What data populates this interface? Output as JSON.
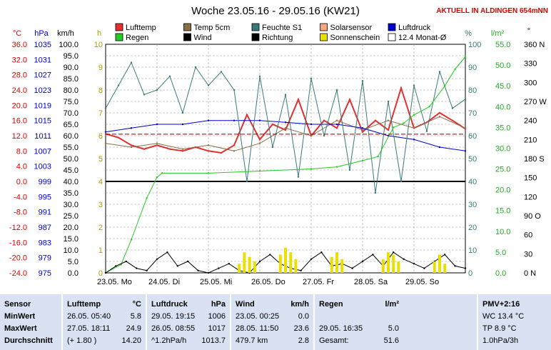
{
  "header": {
    "title": "Woche 23.05.16 - 29.05.16 (KW21)",
    "subtitle": "AKTUELL IN ALDINGEN 654mNN"
  },
  "axis_units": {
    "temp": "°C",
    "press": "hPa",
    "kmh": "km/h",
    "h": "h",
    "pct": "%",
    "lm2": "l/m²",
    "deg": "°"
  },
  "legend": [
    {
      "label": "Lufttemp",
      "color": "#e03030"
    },
    {
      "label": "Temp 5cm",
      "color": "#8b6f47"
    },
    {
      "label": "Feuchte S1",
      "color": "#3a7a7a"
    },
    {
      "label": "Solarsensor",
      "color": "#f4a882"
    },
    {
      "label": "Luftdruck",
      "color": "#0000d0"
    },
    {
      "label": "Regen",
      "color": "#22cc22"
    },
    {
      "label": "Wind",
      "color": "#000000"
    },
    {
      "label": "Richtung",
      "color": "#000000"
    },
    {
      "label": "Sonnenschein",
      "color": "#e8e000"
    },
    {
      "label": "12.4 Monat-Ø",
      "color": "#ffffff"
    }
  ],
  "chart_data": {
    "type": "line",
    "title": "Woche 23.05.16 - 29.05.16 (KW21)",
    "x_ticks": [
      "23.05. Mo",
      "24.05. Di",
      "25.05. Mi",
      "26.05. Do",
      "27.05. Fr",
      "28.05. Sa",
      "29.05. So"
    ],
    "axes": {
      "temp_c": [
        "36.0",
        "32.0",
        "28.0",
        "24.0",
        "20.0",
        "16.0",
        "12.0",
        "8.0",
        "4.0",
        "0.0",
        "-4.0",
        "-8.0",
        "-12.0",
        "-16.0",
        "-20.0",
        "-24.0"
      ],
      "press_hpa": [
        "1035",
        "1031",
        "1027",
        "1023",
        "1019",
        "1015",
        "1011",
        "1007",
        "1003",
        "999",
        "995",
        "991",
        "987",
        "983",
        "979",
        "975"
      ],
      "wind_kmh": [
        "100.0",
        "95.0",
        "90.0",
        "85.0",
        "80.0",
        "75.0",
        "70.0",
        "65.0",
        "60.0",
        "55.0",
        "50.0",
        "45.0",
        "40.0",
        "35.0",
        "30.0",
        "25.0",
        "20.0",
        "15.0",
        "10.0",
        "5.0",
        "0.0"
      ],
      "sun_h": [
        "10",
        "9",
        "8",
        "7",
        "6",
        "5",
        "4",
        "3",
        "2",
        "1",
        "0"
      ],
      "humidity_pct": [
        "100",
        "90",
        "80",
        "70",
        "60",
        "50",
        "40",
        "30",
        "20",
        "10",
        "0"
      ],
      "rain_lm2": [
        "55.0",
        "50.0",
        "45.0",
        "40.0",
        "35.0",
        "30.0",
        "25.0",
        "20.0",
        "15.0",
        "10.0",
        "5.0",
        "0.0"
      ],
      "direction_deg": [
        "360 N",
        "330",
        "300",
        "270 W",
        "240",
        "210",
        "180 S",
        "150",
        "120",
        "90 O",
        "60",
        "30",
        "0 N"
      ]
    },
    "ylim": {
      "temp_c": [
        -24,
        36
      ],
      "press_hpa": [
        975,
        1035
      ],
      "wind_kmh": [
        0,
        100
      ],
      "sun_h": [
        0,
        10
      ],
      "humidity_pct": [
        0,
        100
      ],
      "rain_lm2": [
        0,
        55
      ],
      "direction_deg": [
        0,
        360
      ]
    },
    "xlim_days": [
      0,
      7
    ],
    "series": [
      {
        "name": "Lufttemp",
        "axis": "temp_c",
        "x": [
          0,
          0.25,
          0.5,
          0.75,
          1,
          1.25,
          1.5,
          1.75,
          2,
          2.25,
          2.5,
          2.75,
          3,
          3.25,
          3.5,
          3.75,
          4,
          4.25,
          4.5,
          4.75,
          5,
          5.25,
          5.5,
          5.75,
          6,
          6.25,
          6.5,
          6.75,
          7
        ],
        "y": [
          12.5,
          11.5,
          9.5,
          8.5,
          9.5,
          8.5,
          8.0,
          9.0,
          8.0,
          7.5,
          9.5,
          17.5,
          11.0,
          15.0,
          13.5,
          21.5,
          12.0,
          16.0,
          14.0,
          21.5,
          13.0,
          16.0,
          13.5,
          24.5,
          14.0,
          15.5,
          18.0,
          16.0,
          13.8
        ]
      },
      {
        "name": "Temp 5cm",
        "axis": "temp_c",
        "x": [
          0,
          0.5,
          1,
          1.5,
          2,
          2.5,
          3,
          3.5,
          4,
          4.5,
          5,
          5.5,
          6,
          6.5,
          7
        ],
        "y": [
          10,
          9,
          10,
          8.5,
          9.5,
          8,
          10,
          14,
          12,
          16,
          13.5,
          16,
          14,
          17,
          14
        ]
      },
      {
        "name": "Luftdruck",
        "axis": "press_hpa",
        "x": [
          0,
          0.5,
          1,
          1.5,
          2,
          2.5,
          3,
          3.5,
          4,
          4.5,
          5,
          5.5,
          6,
          6.5,
          7
        ],
        "y": [
          1012,
          1013,
          1014,
          1014,
          1015,
          1015,
          1015,
          1014.5,
          1014,
          1014,
          1013,
          1011,
          1010,
          1008,
          1007
        ]
      },
      {
        "name": "Feuchte S1",
        "axis": "humidity_pct",
        "x": [
          0,
          0.25,
          0.5,
          0.75,
          1,
          1.25,
          1.5,
          1.75,
          2,
          2.25,
          2.5,
          2.75,
          3,
          3.25,
          3.5,
          3.75,
          4,
          4.25,
          4.5,
          4.75,
          5,
          5.25,
          5.5,
          5.75,
          6,
          6.25,
          6.5,
          6.75,
          7
        ],
        "y": [
          72,
          82,
          92,
          78,
          80,
          86,
          70,
          90,
          82,
          88,
          80,
          40,
          86,
          55,
          78,
          42,
          85,
          60,
          80,
          45,
          84,
          35,
          75,
          40,
          82,
          62,
          88,
          72,
          76
        ]
      },
      {
        "name": "Regen",
        "axis": "rain_lm2",
        "x": [
          0,
          0.3,
          0.5,
          0.8,
          1.0,
          1.1,
          2.0,
          3.0,
          4.0,
          4.5,
          5.0,
          5.3,
          5.6,
          5.8,
          6.0,
          6.3,
          6.6,
          6.8,
          7
        ],
        "y": [
          0,
          2,
          8,
          18,
          23,
          24,
          24,
          24.5,
          25,
          25.5,
          27,
          28,
          35,
          36,
          38,
          40,
          45,
          49,
          52
        ]
      },
      {
        "name": "Wind",
        "axis": "wind_kmh",
        "x": [
          0,
          0.2,
          0.4,
          0.6,
          0.8,
          1.0,
          1.2,
          1.4,
          1.6,
          1.8,
          2.0,
          2.2,
          2.4,
          2.6,
          2.8,
          3.0,
          3.2,
          3.4,
          3.6,
          3.8,
          4.0,
          4.2,
          4.4,
          4.6,
          4.8,
          5.0,
          5.2,
          5.4,
          5.6,
          5.8,
          6.0,
          6.2,
          6.4,
          6.6,
          6.8,
          7.0
        ],
        "y": [
          0,
          3,
          5,
          2,
          1,
          6,
          9,
          3,
          5,
          1,
          0,
          2,
          4,
          1,
          0,
          5,
          8,
          4,
          2,
          1,
          6,
          9,
          3,
          4,
          2,
          5,
          8,
          3,
          9,
          6,
          4,
          2,
          5,
          8,
          3,
          2
        ]
      },
      {
        "name": "Sonnenschein",
        "axis": "sun_h",
        "x": [
          2.6,
          2.7,
          2.8,
          2.9,
          3.4,
          3.5,
          3.6,
          3.7,
          4.4,
          4.5,
          4.6,
          5.4,
          5.5,
          5.6,
          5.7,
          6.4,
          6.5,
          6.6
        ],
        "y": [
          0.4,
          0.9,
          0.7,
          0.5,
          0.8,
          1.1,
          0.9,
          0.6,
          0.7,
          0.9,
          0.6,
          0.6,
          0.9,
          0.8,
          0.5,
          0.5,
          0.8,
          0.4
        ]
      },
      {
        "name": "12.4 Monat-Ø",
        "axis": "temp_c",
        "x": [
          0,
          7
        ],
        "y": [
          12.4,
          12.4
        ]
      }
    ]
  },
  "table": {
    "sensor": {
      "head": "Sensor",
      "rows": [
        "MinWert",
        "MaxWert",
        "Durchschnitt"
      ]
    },
    "temp": {
      "head": "Lufttemp",
      "unit": "°C",
      "rows": [
        [
          "26.05.  05:40",
          "5.8"
        ],
        [
          "27.05.  18:11",
          "24.9"
        ],
        [
          "(+ 1.80 )",
          "14.20"
        ]
      ]
    },
    "press": {
      "head": "Luftdruck",
      "unit": "hPa",
      "rows": [
        [
          "29.05.  19:15",
          "1006"
        ],
        [
          "26.05.  08:55",
          "1017"
        ],
        [
          "^1.2hPa/h",
          "1013.7"
        ]
      ]
    },
    "wind": {
      "head": "Wind",
      "unit": "km/h",
      "rows": [
        [
          "23.05.  00:25",
          "0.0"
        ],
        [
          "28.05.  11:50",
          "23.6"
        ],
        [
          "479.7 km",
          "2.8"
        ]
      ]
    },
    "rain": {
      "head": "Regen",
      "unit": "l/m²",
      "rows": [
        [
          "",
          ""
        ],
        [
          "29.05.  16:35",
          "5.0"
        ],
        [
          "Gesamt:",
          "51.6"
        ]
      ]
    },
    "pmv": {
      "head": "PMV+2:16",
      "rows": [
        "WC 13.4 °C",
        "TP 8.9 °C",
        "1.0hPa/3h"
      ]
    }
  }
}
